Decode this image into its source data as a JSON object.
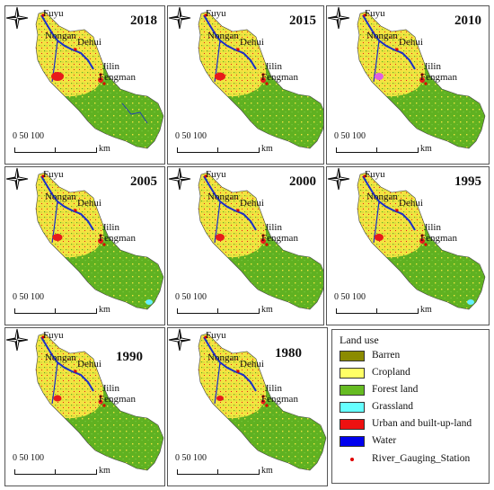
{
  "maps": [
    {
      "year": "2018"
    },
    {
      "year": "2015"
    },
    {
      "year": "2010"
    },
    {
      "year": "2005"
    },
    {
      "year": "2000"
    },
    {
      "year": "1995"
    },
    {
      "year": "1990"
    },
    {
      "year": "1980"
    }
  ],
  "places": {
    "fuyu": "Fuyu",
    "nongan": "Nongan",
    "dehui": "Dehui",
    "jilin": "Jilin",
    "fengman": "Fengman"
  },
  "scale_bar": {
    "ticks": "0   50  100",
    "unit": "km"
  },
  "legend": {
    "title": "Land use",
    "items": [
      {
        "label": "Barren",
        "color": "#8b8b00"
      },
      {
        "label": "Cropland",
        "color": "#ffff66"
      },
      {
        "label": "Forest land",
        "color": "#66bb22"
      },
      {
        "label": "Grassland",
        "color": "#66ffff"
      },
      {
        "label": "Urban and built-up-land",
        "color": "#ee1111"
      },
      {
        "label": "Water",
        "color": "#0000ee"
      }
    ],
    "station_label": "River_Gauging_Station",
    "station_color": "#dd0000"
  },
  "colors": {
    "cropland": "#f2e441",
    "forest": "#5fb121",
    "water": "#1a2fc8",
    "urban": "#e81a1a",
    "grassland": "#66eeff",
    "barren": "#8b8b00"
  }
}
